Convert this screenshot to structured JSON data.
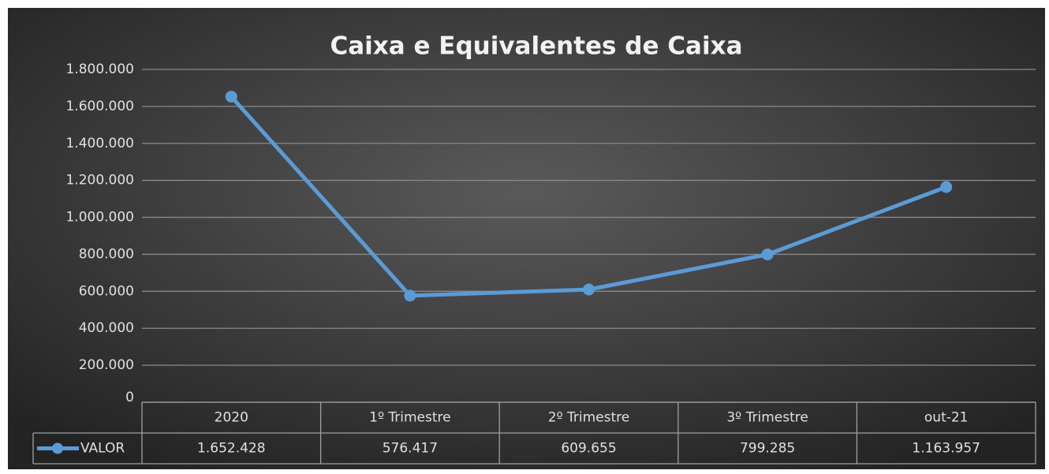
{
  "chart_data": {
    "type": "line",
    "title": "Caixa e Equivalentes de Caixa",
    "categories": [
      "2020",
      "1º Trimestre",
      "2º Trimestre",
      "3º Trimestre",
      "out-21"
    ],
    "series": [
      {
        "name": "VALOR",
        "color": "#5b9bd5",
        "values": [
          1652428,
          576417,
          609655,
          799285,
          1163957
        ],
        "value_labels": [
          "1.652.428",
          "576.417",
          "609.655",
          "799.285",
          "1.163.957"
        ]
      }
    ],
    "ylim": [
      0,
      1800000
    ],
    "yticks": [
      0,
      {
        "value": 200000,
        "label": "200.000"
      },
      {
        "value": 400000,
        "label": "400.000"
      },
      {
        "value": 600000,
        "label": "600.000"
      },
      {
        "value": 800000,
        "label": "800.000"
      },
      {
        "value": 1000000,
        "label": "1.000.000"
      },
      {
        "value": 1200000,
        "label": "1.200.000"
      },
      {
        "value": 1400000,
        "label": "1.400.000"
      },
      {
        "value": 1600000,
        "label": "1.600.000"
      },
      {
        "value": 1800000,
        "label": "1.800.000"
      }
    ],
    "grid": true,
    "data_table": true
  }
}
